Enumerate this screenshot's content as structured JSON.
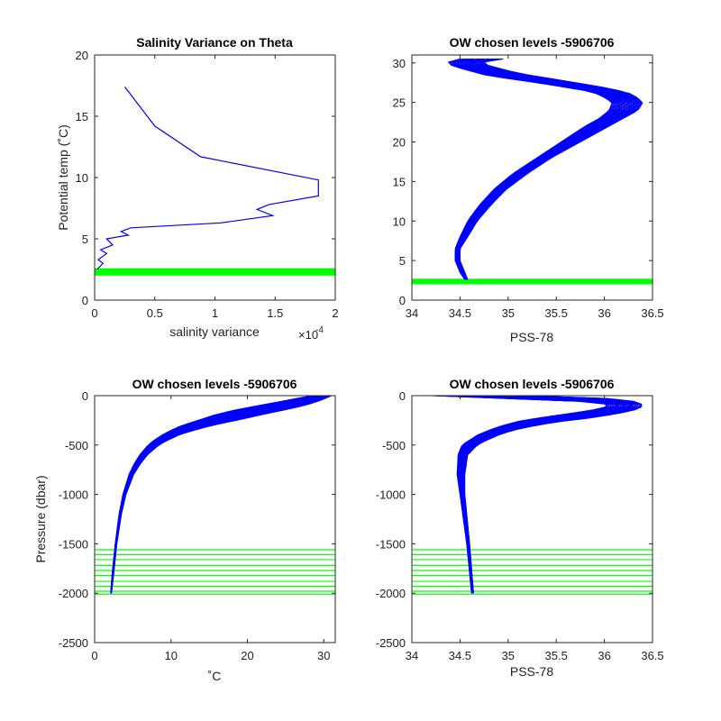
{
  "figure": {
    "background": "#ffffff",
    "axis_color": "#262626",
    "profile_color": "#0000ff",
    "highlight_color": "#00ff00"
  },
  "chart_data": [
    {
      "type": "line",
      "title": "Salinity Variance on Theta",
      "xlabel": "salinity variance",
      "ylabel": "Potential temp (˚C)",
      "x_multiplier": "×10",
      "x_multiplier_exp": "-4",
      "xlim": [
        0,
        2
      ],
      "ylim": [
        0,
        20
      ],
      "xticks": [
        0,
        0.5,
        1,
        1.5,
        2
      ],
      "xtick_labels": [
        "0",
        "0.5",
        "1",
        "1.5",
        "2"
      ],
      "yticks": [
        0,
        5,
        10,
        15,
        20
      ],
      "ytick_labels": [
        "0",
        "5",
        "10",
        "15",
        "20"
      ],
      "series": [
        {
          "x": [
            0.25,
            0.5,
            0.88,
            1.86,
            1.86,
            1.45,
            1.35,
            1.48,
            1.05,
            0.3,
            0.22,
            0.28,
            0.1,
            0.15,
            0.05,
            0.1,
            0.03,
            0.07,
            0.02
          ],
          "y": [
            17.4,
            14.2,
            11.7,
            9.8,
            8.5,
            7.8,
            7.4,
            6.9,
            6.3,
            5.9,
            5.6,
            5.3,
            5.0,
            4.5,
            4.1,
            3.8,
            3.3,
            3.0,
            2.5
          ]
        }
      ],
      "highlight": {
        "type": "horizontal_band",
        "y_range": [
          2.0,
          2.6
        ]
      }
    },
    {
      "type": "line",
      "title": "OW chosen levels -5906706",
      "xlabel": "PSS-78",
      "ylabel": "",
      "xlim": [
        34,
        36.5
      ],
      "ylim": [
        0,
        31
      ],
      "xticks": [
        34,
        34.5,
        35,
        35.5,
        36,
        36.5
      ],
      "xtick_labels": [
        "34",
        "34.5",
        "35",
        "35.5",
        "36",
        "36.5"
      ],
      "yticks": [
        0,
        5,
        10,
        15,
        20,
        25,
        30
      ],
      "ytick_labels": [
        "0",
        "5",
        "10",
        "15",
        "20",
        "25",
        "30"
      ],
      "profile_count": 55,
      "envelope": {
        "y": [
          2.6,
          3.5,
          5,
          6.5,
          8,
          10,
          12,
          14,
          16,
          18,
          20,
          22,
          23,
          24,
          25,
          26,
          26.5,
          27,
          27.5,
          28,
          28.5,
          29,
          29.5,
          30,
          30.5
        ],
        "x_min": [
          34.55,
          34.5,
          34.45,
          34.45,
          34.5,
          34.58,
          34.7,
          34.85,
          35.05,
          35.3,
          35.55,
          35.8,
          35.95,
          36.05,
          36.08,
          35.95,
          35.8,
          35.55,
          35.3,
          35.0,
          34.75,
          34.6,
          34.45,
          34.35,
          34.5
        ],
        "x_max": [
          34.58,
          34.55,
          34.5,
          34.5,
          34.58,
          34.68,
          34.82,
          34.98,
          35.2,
          35.45,
          35.75,
          36.05,
          36.2,
          36.35,
          36.4,
          36.3,
          36.15,
          35.95,
          35.7,
          35.45,
          35.2,
          35.0,
          34.85,
          34.7,
          34.95
        ]
      },
      "highlight": {
        "type": "horizontal_band",
        "y_range": [
          2.0,
          2.7
        ]
      }
    },
    {
      "type": "line",
      "title": "OW chosen levels -5906706",
      "xlabel": "˚C",
      "ylabel": "Pressure (dbar)",
      "xlim": [
        0,
        31.5
      ],
      "ylim": [
        -2500,
        0
      ],
      "xticks": [
        0,
        10,
        20,
        30
      ],
      "xtick_labels": [
        "0",
        "10",
        "20",
        "30"
      ],
      "yticks": [
        -2500,
        -2000,
        -1500,
        -1000,
        -500,
        0
      ],
      "ytick_labels": [
        "-2500",
        "-2000",
        "-1500",
        "-1000",
        "-500",
        "0"
      ],
      "profile_count": 55,
      "envelope": {
        "y": [
          0,
          -20,
          -50,
          -100,
          -150,
          -200,
          -250,
          -300,
          -350,
          -400,
          -450,
          -500,
          -600,
          -700,
          -800,
          -1000,
          -1200,
          -1500,
          -1800,
          -2000
        ],
        "x_min": [
          28.5,
          27.0,
          25.0,
          21.5,
          18.0,
          15.5,
          13.5,
          11.5,
          10.0,
          8.8,
          7.8,
          7.0,
          5.9,
          5.1,
          4.5,
          3.7,
          3.2,
          2.7,
          2.3,
          2.1
        ],
        "x_max": [
          31.0,
          30.5,
          29.5,
          27.5,
          24.5,
          21.5,
          18.5,
          15.5,
          13.0,
          11.0,
          9.6,
          8.4,
          6.9,
          5.9,
          5.1,
          4.1,
          3.5,
          2.9,
          2.5,
          2.2
        ]
      },
      "highlight": {
        "type": "horizontal_lines",
        "y_values": [
          -1560,
          -1610,
          -1660,
          -1720,
          -1770,
          -1820,
          -1880,
          -1930,
          -1980,
          -2010
        ]
      }
    },
    {
      "type": "line",
      "title": "OW chosen levels -5906706",
      "xlabel": "PSS-78",
      "ylabel": "",
      "xlim": [
        34,
        36.5
      ],
      "ylim": [
        -2500,
        0
      ],
      "xticks": [
        34,
        34.5,
        35,
        35.5,
        36,
        36.5
      ],
      "xtick_labels": [
        "34",
        "34.5",
        "35",
        "35.5",
        "36",
        "36.5"
      ],
      "yticks": [
        -2500,
        -2000,
        -1500,
        -1000,
        -500,
        0
      ],
      "ytick_labels": [
        "-2500",
        "-2000",
        "-1500",
        "-1000",
        "-500",
        "0"
      ],
      "profile_count": 55,
      "envelope": {
        "y": [
          0,
          -20,
          -40,
          -60,
          -80,
          -100,
          -120,
          -150,
          -180,
          -220,
          -260,
          -300,
          -350,
          -400,
          -450,
          -500,
          -600,
          -800,
          -1000,
          -1500,
          -2000
        ],
        "x_min": [
          34.2,
          34.7,
          35.3,
          35.8,
          36.0,
          36.05,
          36.0,
          35.85,
          35.65,
          35.35,
          35.1,
          34.95,
          34.8,
          34.68,
          34.6,
          34.52,
          34.48,
          34.47,
          34.5,
          34.57,
          34.62
        ],
        "x_max": [
          35.2,
          35.9,
          36.2,
          36.32,
          36.38,
          36.4,
          36.38,
          36.3,
          36.15,
          35.9,
          35.55,
          35.3,
          35.05,
          34.9,
          34.78,
          34.68,
          34.58,
          34.55,
          34.55,
          34.6,
          34.64
        ]
      },
      "highlight": {
        "type": "horizontal_lines",
        "y_values": [
          -1560,
          -1610,
          -1660,
          -1720,
          -1770,
          -1820,
          -1880,
          -1930,
          -1980,
          -2010
        ]
      }
    }
  ]
}
